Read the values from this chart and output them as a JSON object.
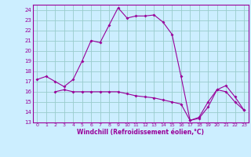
{
  "xlabel": "Windchill (Refroidissement éolien,°C)",
  "bg_color": "#cceeff",
  "grid_color": "#99cccc",
  "line_color": "#990099",
  "xlim": [
    -0.5,
    23.5
  ],
  "ylim": [
    13,
    24.5
  ],
  "xticks": [
    0,
    1,
    2,
    3,
    4,
    5,
    6,
    7,
    8,
    9,
    10,
    11,
    12,
    13,
    14,
    15,
    16,
    17,
    18,
    19,
    20,
    21,
    22,
    23
  ],
  "yticks": [
    13,
    14,
    15,
    16,
    17,
    18,
    19,
    20,
    21,
    22,
    23,
    24
  ],
  "series1_x": [
    0,
    1,
    2,
    3,
    4,
    5,
    6,
    7,
    8,
    9,
    10,
    11,
    12,
    13,
    14,
    15,
    16,
    17,
    18,
    19,
    20,
    21,
    22,
    23
  ],
  "series1_y": [
    17.2,
    17.5,
    17.0,
    16.5,
    17.2,
    19.0,
    21.0,
    20.8,
    22.5,
    24.2,
    23.2,
    23.4,
    23.4,
    23.5,
    22.8,
    21.6,
    17.5,
    13.2,
    13.5,
    15.0,
    16.2,
    16.6,
    15.5,
    14.2
  ],
  "series2_x": [
    2,
    3,
    4,
    5,
    6,
    7,
    8,
    9,
    10,
    11,
    12,
    13,
    14,
    15,
    16,
    17,
    18,
    19,
    20,
    21,
    22,
    23
  ],
  "series2_y": [
    16.0,
    16.2,
    16.0,
    16.0,
    16.0,
    16.0,
    16.0,
    16.0,
    15.8,
    15.6,
    15.5,
    15.4,
    15.2,
    15.0,
    14.8,
    13.2,
    13.4,
    14.5,
    16.2,
    16.0,
    15.0,
    14.2
  ]
}
